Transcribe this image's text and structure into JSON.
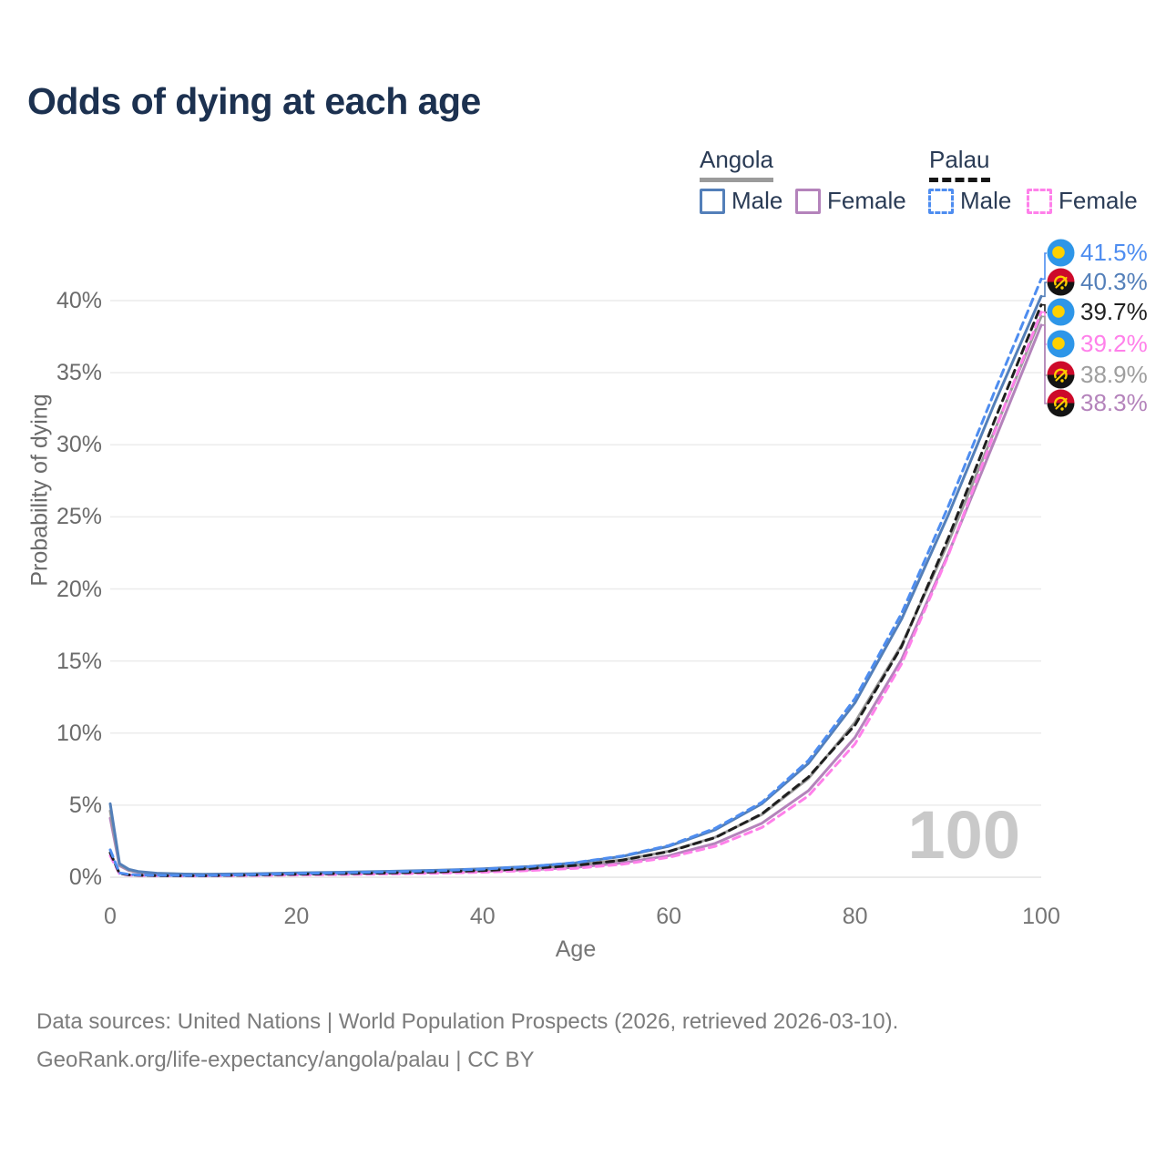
{
  "title": "Odds of dying at each age",
  "legend": {
    "groups": [
      {
        "label": "Angola",
        "style": "solid",
        "items": [
          {
            "label": "Male"
          },
          {
            "label": "Female"
          }
        ]
      },
      {
        "label": "Palau",
        "style": "dashed",
        "items": [
          {
            "label": "Male"
          },
          {
            "label": "Female"
          }
        ]
      }
    ]
  },
  "chart_data": {
    "type": "line",
    "title": "Odds of dying at each age",
    "xlabel": "Age",
    "ylabel": "Probability of dying",
    "grid": "horizontal",
    "xlim": [
      0,
      100
    ],
    "ylim_percent": [
      0,
      43
    ],
    "x_ticks": [
      "0",
      "20",
      "40",
      "60",
      "80",
      "100"
    ],
    "y_ticks": [
      "0%",
      "5%",
      "10%",
      "15%",
      "20%",
      "25%",
      "30%",
      "35%",
      "40%"
    ],
    "hover_age_watermark": "100",
    "ages": [
      0,
      1,
      2,
      3,
      5,
      8,
      10,
      15,
      20,
      25,
      30,
      35,
      40,
      45,
      50,
      55,
      60,
      65,
      70,
      75,
      80,
      85,
      90,
      95,
      100
    ],
    "series": [
      {
        "name": "Angola Female",
        "country": "Angola",
        "sex": "Female",
        "color": "#b483bb",
        "dashed": false,
        "values": [
          4.1,
          0.8,
          0.46,
          0.34,
          0.24,
          0.18,
          0.17,
          0.19,
          0.22,
          0.25,
          0.29,
          0.34,
          0.41,
          0.51,
          0.69,
          1.0,
          1.5,
          2.35,
          3.75,
          6.0,
          9.7,
          15.1,
          22.4,
          30.3,
          38.3
        ]
      },
      {
        "name": "Angola Both sexes",
        "country": "Angola",
        "sex": "Both",
        "color": "#9b9b9b",
        "dashed": false,
        "values": [
          4.6,
          0.88,
          0.5,
          0.37,
          0.26,
          0.2,
          0.19,
          0.21,
          0.26,
          0.3,
          0.35,
          0.41,
          0.49,
          0.62,
          0.84,
          1.2,
          1.8,
          2.78,
          4.35,
          6.85,
          10.75,
          16.1,
          23.2,
          31.0,
          38.9
        ]
      },
      {
        "name": "Angola Male",
        "country": "Angola",
        "sex": "Male",
        "color": "#537fb9",
        "dashed": false,
        "values": [
          5.1,
          0.95,
          0.55,
          0.4,
          0.28,
          0.22,
          0.21,
          0.24,
          0.3,
          0.35,
          0.41,
          0.48,
          0.58,
          0.74,
          1.0,
          1.45,
          2.15,
          3.3,
          5.1,
          7.9,
          12.1,
          17.9,
          25.1,
          32.9,
          40.3
        ]
      },
      {
        "name": "Palau Female",
        "country": "Palau",
        "sex": "Female",
        "color": "#ff80ea",
        "dashed": true,
        "values": [
          1.5,
          0.23,
          0.15,
          0.12,
          0.1,
          0.09,
          0.09,
          0.12,
          0.16,
          0.19,
          0.23,
          0.28,
          0.35,
          0.46,
          0.62,
          0.9,
          1.38,
          2.15,
          3.45,
          5.65,
          9.25,
          14.8,
          22.3,
          30.9,
          39.2
        ]
      },
      {
        "name": "Palau Both sexes",
        "country": "Palau",
        "sex": "Both",
        "color": "#1f1f1f",
        "dashed": true,
        "values": [
          1.7,
          0.26,
          0.17,
          0.14,
          0.11,
          0.1,
          0.1,
          0.15,
          0.21,
          0.25,
          0.3,
          0.37,
          0.46,
          0.6,
          0.82,
          1.18,
          1.78,
          2.75,
          4.4,
          6.95,
          10.55,
          16.0,
          23.5,
          31.7,
          39.7
        ]
      },
      {
        "name": "Palau Male",
        "country": "Palau",
        "sex": "Male",
        "color": "#4e8df0",
        "dashed": true,
        "values": [
          1.9,
          0.3,
          0.2,
          0.16,
          0.13,
          0.12,
          0.12,
          0.18,
          0.26,
          0.31,
          0.37,
          0.45,
          0.56,
          0.73,
          1.02,
          1.48,
          2.2,
          3.4,
          5.2,
          8.1,
          12.4,
          18.3,
          25.7,
          33.7,
          41.5
        ]
      }
    ],
    "end_labels": [
      {
        "text": "41.5%",
        "series": "Palau Male",
        "flag": "palau",
        "color": "#4e8df0"
      },
      {
        "text": "40.3%",
        "series": "Angola Male",
        "flag": "angola",
        "color": "#537fb9"
      },
      {
        "text": "39.7%",
        "series": "Palau Both sexes",
        "flag": "palau",
        "color": "#1f1f1f"
      },
      {
        "text": "39.2%",
        "series": "Palau Female",
        "flag": "palau",
        "color": "#ff80ea"
      },
      {
        "text": "38.9%",
        "series": "Angola Both sexes",
        "flag": "angola",
        "color": "#9e9e9e"
      },
      {
        "text": "38.3%",
        "series": "Angola Female",
        "flag": "angola",
        "color": "#b483bb"
      }
    ]
  },
  "footer": {
    "line1": "Data sources: United Nations | World Population Prospects (2026, retrieved 2026-03-10).",
    "line2": "GeoRank.org/life-expectancy/angola/palau | CC BY"
  }
}
